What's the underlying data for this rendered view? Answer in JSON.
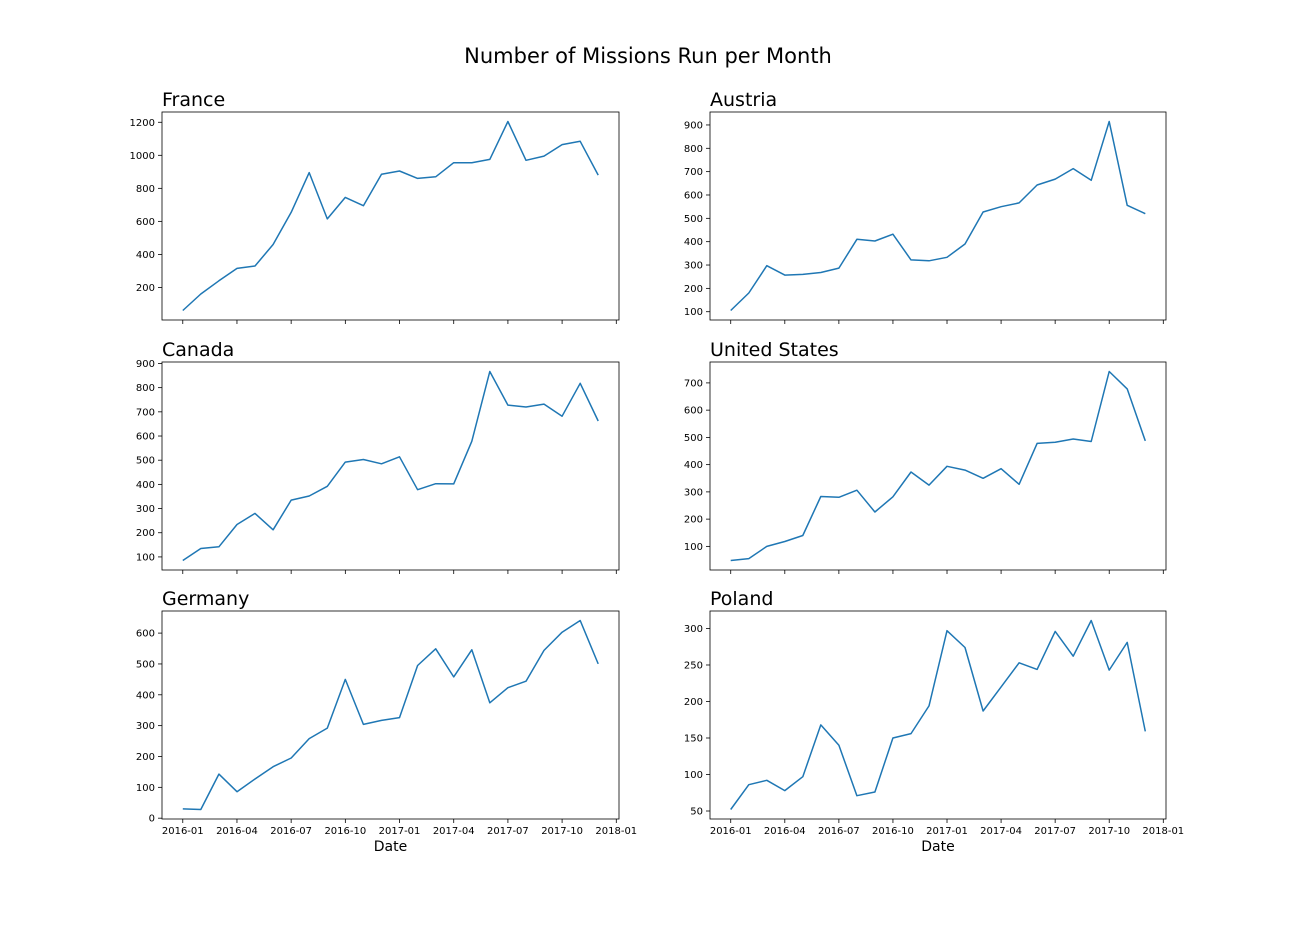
{
  "suptitle": "Number of Missions Run per Month",
  "chart_data": [
    {
      "type": "line",
      "title": "France",
      "xlabel": "",
      "x": [
        "2016-01",
        "2016-02",
        "2016-03",
        "2016-04",
        "2016-05",
        "2016-06",
        "2016-07",
        "2016-08",
        "2016-09",
        "2016-10",
        "2016-11",
        "2016-12",
        "2017-01",
        "2017-02",
        "2017-03",
        "2017-04",
        "2017-05",
        "2017-06",
        "2017-07",
        "2017-08",
        "2017-09",
        "2017-10",
        "2017-11",
        "2017-12"
      ],
      "values": [
        60,
        160,
        240,
        315,
        330,
        460,
        655,
        895,
        615,
        745,
        695,
        885,
        905,
        860,
        870,
        955,
        955,
        975,
        1205,
        970,
        995,
        1065,
        1085,
        880
      ],
      "yticks": [
        200,
        400,
        600,
        800,
        1000,
        1200
      ],
      "xticks": [
        "2016-01",
        "2016-04",
        "2016-07",
        "2016-10",
        "2017-01",
        "2017-04",
        "2017-07",
        "2017-10",
        "2018-01"
      ],
      "show_xtick_labels": false,
      "color": "#1f77b4"
    },
    {
      "type": "line",
      "title": "Austria",
      "xlabel": "",
      "x": [
        "2016-01",
        "2016-02",
        "2016-03",
        "2016-04",
        "2016-05",
        "2016-06",
        "2016-07",
        "2016-08",
        "2016-09",
        "2016-10",
        "2016-11",
        "2016-12",
        "2017-01",
        "2017-02",
        "2017-03",
        "2017-04",
        "2017-05",
        "2017-06",
        "2017-07",
        "2017-08",
        "2017-09",
        "2017-10",
        "2017-11",
        "2017-12"
      ],
      "values": [
        105,
        180,
        297,
        257,
        260,
        268,
        287,
        410,
        403,
        432,
        322,
        318,
        333,
        390,
        527,
        550,
        566,
        643,
        668,
        713,
        663,
        915,
        556,
        520
      ],
      "yticks": [
        100,
        200,
        300,
        400,
        500,
        600,
        700,
        800,
        900
      ],
      "xticks": [
        "2016-01",
        "2016-04",
        "2016-07",
        "2016-10",
        "2017-01",
        "2017-04",
        "2017-07",
        "2017-10",
        "2018-01"
      ],
      "show_xtick_labels": false,
      "color": "#1f77b4"
    },
    {
      "type": "line",
      "title": "Canada",
      "xlabel": "",
      "x": [
        "2016-01",
        "2016-02",
        "2016-03",
        "2016-04",
        "2016-05",
        "2016-06",
        "2016-07",
        "2016-08",
        "2016-09",
        "2016-10",
        "2016-11",
        "2016-12",
        "2017-01",
        "2017-02",
        "2017-03",
        "2017-04",
        "2017-05",
        "2017-06",
        "2017-07",
        "2017-08",
        "2017-09",
        "2017-10",
        "2017-11",
        "2017-12"
      ],
      "values": [
        85,
        135,
        142,
        234,
        280,
        212,
        335,
        352,
        392,
        492,
        503,
        485,
        514,
        378,
        403,
        402,
        578,
        867,
        728,
        720,
        732,
        682,
        818,
        662
      ],
      "yticks": [
        100,
        200,
        300,
        400,
        500,
        600,
        700,
        800,
        900
      ],
      "xticks": [
        "2016-01",
        "2016-04",
        "2016-07",
        "2016-10",
        "2017-01",
        "2017-04",
        "2017-07",
        "2017-10",
        "2018-01"
      ],
      "show_xtick_labels": false,
      "color": "#1f77b4"
    },
    {
      "type": "line",
      "title": "United States",
      "xlabel": "",
      "x": [
        "2016-01",
        "2016-02",
        "2016-03",
        "2016-04",
        "2016-05",
        "2016-06",
        "2016-07",
        "2016-08",
        "2016-09",
        "2016-10",
        "2016-11",
        "2016-12",
        "2017-01",
        "2017-02",
        "2017-03",
        "2017-04",
        "2017-05",
        "2017-06",
        "2017-07",
        "2017-08",
        "2017-09",
        "2017-10",
        "2017-11",
        "2017-12"
      ],
      "values": [
        48,
        55,
        100,
        118,
        140,
        283,
        280,
        306,
        226,
        282,
        373,
        325,
        394,
        380,
        350,
        385,
        328,
        478,
        482,
        494,
        485,
        742,
        678,
        487
      ],
      "yticks": [
        100,
        200,
        300,
        400,
        500,
        600,
        700
      ],
      "xticks": [
        "2016-01",
        "2016-04",
        "2016-07",
        "2016-10",
        "2017-01",
        "2017-04",
        "2017-07",
        "2017-10",
        "2018-01"
      ],
      "show_xtick_labels": false,
      "color": "#1f77b4"
    },
    {
      "type": "line",
      "title": "Germany",
      "xlabel": "Date",
      "x": [
        "2016-01",
        "2016-02",
        "2016-03",
        "2016-04",
        "2016-05",
        "2016-06",
        "2016-07",
        "2016-08",
        "2016-09",
        "2016-10",
        "2016-11",
        "2016-12",
        "2017-01",
        "2017-02",
        "2017-03",
        "2017-04",
        "2017-05",
        "2017-06",
        "2017-07",
        "2017-08",
        "2017-09",
        "2017-10",
        "2017-11",
        "2017-12"
      ],
      "values": [
        30,
        28,
        143,
        86,
        127,
        167,
        195,
        258,
        292,
        450,
        304,
        317,
        326,
        495,
        549,
        458,
        546,
        374,
        423,
        444,
        544,
        603,
        641,
        500
      ],
      "yticks": [
        0,
        100,
        200,
        300,
        400,
        500,
        600
      ],
      "xticks": [
        "2016-01",
        "2016-04",
        "2016-07",
        "2016-10",
        "2017-01",
        "2017-04",
        "2017-07",
        "2017-10",
        "2018-01"
      ],
      "show_xtick_labels": true,
      "color": "#1f77b4"
    },
    {
      "type": "line",
      "title": "Poland",
      "xlabel": "Date",
      "x": [
        "2016-01",
        "2016-02",
        "2016-03",
        "2016-04",
        "2016-05",
        "2016-06",
        "2016-07",
        "2016-08",
        "2016-09",
        "2016-10",
        "2016-11",
        "2016-12",
        "2017-01",
        "2017-02",
        "2017-03",
        "2017-04",
        "2017-05",
        "2017-06",
        "2017-07",
        "2017-08",
        "2017-09",
        "2017-10",
        "2017-11",
        "2017-12"
      ],
      "values": [
        52,
        86,
        92,
        78,
        97,
        168,
        140,
        71,
        76,
        150,
        156,
        194,
        297,
        274,
        187,
        220,
        253,
        244,
        296,
        262,
        311,
        243,
        281,
        159
      ],
      "yticks": [
        50,
        100,
        150,
        200,
        250,
        300
      ],
      "xticks": [
        "2016-01",
        "2016-04",
        "2016-07",
        "2016-10",
        "2017-01",
        "2017-04",
        "2017-07",
        "2017-10",
        "2018-01"
      ],
      "show_xtick_labels": true,
      "color": "#1f77b4"
    }
  ]
}
